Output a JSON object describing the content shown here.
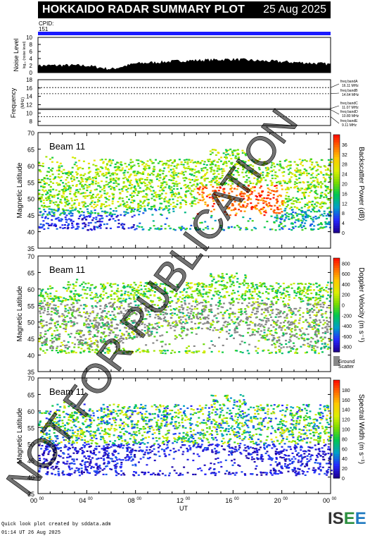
{
  "header": {
    "title": "HOKKAIDO RADAR SUMMARY PLOT",
    "date": "25 Aug 2025",
    "cpid_label": "CPID:",
    "cpid_value": "151"
  },
  "noise_panel": {
    "ylabel": "Noise Level",
    "ylabel_sub": "log₁₀ (noise level)",
    "yticks": [
      "0",
      "2",
      "4",
      "6",
      "8",
      "10"
    ]
  },
  "frequency_panel": {
    "ylabel": "Frequency",
    "ylabel_unit": "(MHz)",
    "yticks": [
      "8",
      "10",
      "12",
      "14",
      "16",
      "18"
    ],
    "bands": [
      {
        "name": "freq bandA",
        "freq": "16.11 MHz"
      },
      {
        "name": "freq bandB",
        "freq": "14.64 MHz"
      },
      {
        "name": "freq bandC",
        "freq": "11.07 MHz"
      },
      {
        "name": "freq bandD",
        "freq": "10.80 MHz"
      },
      {
        "name": "freq bandE",
        "freq": "9.11 MHz"
      }
    ]
  },
  "beam_label": "Beam 11",
  "latitude_label": "Magnetic Latitude",
  "lat_ticks": [
    "35",
    "40",
    "45",
    "50",
    "55",
    "60",
    "65",
    "70"
  ],
  "x_ticks": [
    "00",
    "04",
    "08",
    "12",
    "16",
    "20",
    "00"
  ],
  "x_tick_sup": "00",
  "xlabel": "UT",
  "colorbars": {
    "power": {
      "label": "Backscatter Power (dB)",
      "ticks": [
        "0",
        "4",
        "8",
        "12",
        "16",
        "20",
        "24",
        "28",
        "32",
        "36"
      ]
    },
    "velocity": {
      "label": "Doppler Velocity (m s⁻¹)",
      "ticks": [
        "800",
        "600",
        "400",
        "200",
        "0",
        "-200",
        "-400",
        "-600",
        "-800"
      ],
      "ground_label": "Ground",
      "ground_label2": "Scatter"
    },
    "width": {
      "label": "Spectral Width (m s⁻¹)",
      "ticks": [
        "0",
        "20",
        "40",
        "60",
        "80",
        "100",
        "120",
        "140",
        "160",
        "180"
      ]
    }
  },
  "watermark": "NOT FOR PUBLICATION",
  "footer": {
    "line1": "Quick look plot created by sddata.adm",
    "line2": "01:14 UT 26 Aug 2025"
  },
  "logo": {
    "p1": "IS",
    "p2": "E",
    "p3": "E"
  },
  "colors": {
    "accent": "#1a1aff",
    "ground": "#888888",
    "title_bg": "#000000"
  },
  "chart_data": [
    {
      "type": "area",
      "title": "Noise Level",
      "ylim": [
        0,
        10
      ],
      "x": [
        0,
        2,
        4,
        6,
        8,
        10,
        12,
        14,
        16,
        18,
        20,
        22,
        24
      ],
      "values": [
        2.0,
        2.1,
        2.0,
        1.0,
        2.6,
        3.0,
        3.4,
        3.6,
        3.8,
        3.4,
        3.1,
        2.8,
        2.4
      ]
    },
    {
      "type": "line",
      "title": "Frequency",
      "ylim": [
        7,
        18
      ],
      "series": [
        {
          "name": "freq bandA",
          "values": [
            16.11
          ]
        },
        {
          "name": "freq bandB",
          "values": [
            14.64
          ]
        },
        {
          "name": "freq bandC",
          "values": [
            11.07
          ]
        },
        {
          "name": "freq bandD",
          "values": [
            10.8
          ]
        },
        {
          "name": "freq bandE",
          "values": [
            9.11
          ]
        }
      ]
    },
    {
      "type": "heatmap",
      "title": "Backscatter Power (dB)",
      "xlim": [
        0,
        24
      ],
      "ylim": [
        35,
        70
      ],
      "zlim": [
        0,
        36
      ]
    },
    {
      "type": "heatmap",
      "title": "Doppler Velocity (m s⁻¹)",
      "xlim": [
        0,
        24
      ],
      "ylim": [
        35,
        70
      ],
      "zlim": [
        -800,
        800
      ]
    },
    {
      "type": "heatmap",
      "title": "Spectral Width (m s⁻¹)",
      "xlim": [
        0,
        24
      ],
      "ylim": [
        35,
        70
      ],
      "zlim": [
        0,
        180
      ]
    }
  ]
}
